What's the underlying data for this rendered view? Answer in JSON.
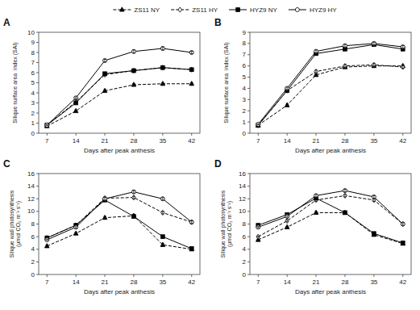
{
  "chart_data": [
    {
      "type": "line",
      "title": "A",
      "x_label": "Days after peak anthesis",
      "y_label": "Silique surface area  index (SAI)",
      "x": [
        7,
        14,
        21,
        28,
        35,
        42
      ],
      "xlim": [
        5,
        44
      ],
      "xticks": [
        7,
        14,
        21,
        28,
        35,
        42
      ],
      "ylim": [
        0,
        10
      ],
      "yticks": [
        0,
        1,
        2,
        3,
        4,
        5,
        6,
        7,
        8,
        9,
        10
      ],
      "grid": false,
      "legend": "top",
      "series": [
        {
          "name": "ZS11 NY",
          "color": "#000000",
          "line_style": "dashed",
          "marker": "triangle",
          "values": [
            0.7,
            2.2,
            4.2,
            4.8,
            4.9,
            4.9
          ],
          "errors": [
            0.05,
            0.1,
            0.12,
            0.12,
            0.1,
            0.1
          ]
        },
        {
          "name": "ZS11 HY",
          "color": "#000000",
          "line_style": "dashed",
          "marker": "diamond-open",
          "values": [
            0.8,
            3.1,
            5.8,
            6.2,
            6.5,
            6.3
          ],
          "errors": [
            0.05,
            0.1,
            0.12,
            0.12,
            0.12,
            0.12
          ]
        },
        {
          "name": "HYZ9 NY",
          "color": "#000000",
          "line_style": "solid",
          "marker": "square",
          "values": [
            0.8,
            3.0,
            5.9,
            6.2,
            6.5,
            6.3
          ],
          "errors": [
            0.05,
            0.1,
            0.12,
            0.12,
            0.12,
            0.12
          ]
        },
        {
          "name": "HYZ9 HY",
          "color": "#000000",
          "line_style": "solid",
          "marker": "circle-open",
          "values": [
            0.8,
            3.5,
            7.2,
            8.1,
            8.4,
            8.0
          ],
          "errors": [
            0.05,
            0.1,
            0.12,
            0.15,
            0.15,
            0.12
          ]
        }
      ]
    },
    {
      "type": "line",
      "title": "B",
      "x_label": "Days after peak anthesis",
      "y_label": "Silique surface area  index (SAI)",
      "x": [
        7,
        14,
        21,
        28,
        35,
        42
      ],
      "xlim": [
        5,
        44
      ],
      "xticks": [
        7,
        14,
        21,
        28,
        35,
        42
      ],
      "ylim": [
        0,
        9
      ],
      "yticks": [
        0,
        1,
        2,
        3,
        4,
        5,
        6,
        7,
        8,
        9
      ],
      "grid": false,
      "series": [
        {
          "color": "#000000",
          "line_style": "dashed",
          "marker": "triangle",
          "values": [
            0.7,
            2.5,
            5.2,
            5.9,
            6.0,
            6.0
          ],
          "errors": [
            0.05,
            0.1,
            0.12,
            0.12,
            0.12,
            0.12
          ]
        },
        {
          "color": "#000000",
          "line_style": "dashed",
          "marker": "diamond-open",
          "values": [
            0.7,
            3.8,
            5.5,
            6.0,
            6.1,
            5.9
          ],
          "errors": [
            0.05,
            0.1,
            0.12,
            0.12,
            0.12,
            0.12
          ]
        },
        {
          "color": "#000000",
          "line_style": "solid",
          "marker": "square",
          "values": [
            0.7,
            3.8,
            7.1,
            7.5,
            7.9,
            7.5
          ],
          "errors": [
            0.05,
            0.1,
            0.12,
            0.12,
            0.12,
            0.12
          ]
        },
        {
          "color": "#000000",
          "line_style": "solid",
          "marker": "circle-open",
          "values": [
            0.8,
            4.0,
            7.3,
            7.8,
            8.0,
            7.7
          ],
          "errors": [
            0.05,
            0.1,
            0.12,
            0.12,
            0.12,
            0.12
          ]
        }
      ]
    },
    {
      "type": "line",
      "title": "C",
      "x_label": "Days after peak anthesis",
      "y_label": "Silique wall photosynthesis\n(μmol CO₂ m⁻² s⁻¹)",
      "x": [
        7,
        14,
        21,
        28,
        35,
        42
      ],
      "xlim": [
        5,
        44
      ],
      "xticks": [
        7,
        14,
        21,
        28,
        35,
        42
      ],
      "ylim": [
        0,
        16
      ],
      "yticks": [
        0,
        2,
        4,
        6,
        8,
        10,
        12,
        14,
        16
      ],
      "grid": false,
      "series": [
        {
          "color": "#000000",
          "line_style": "dashed",
          "marker": "triangle",
          "values": [
            4.5,
            6.5,
            9.0,
            9.3,
            4.7,
            4.0
          ],
          "errors": [
            0.1,
            0.15,
            0.2,
            0.2,
            0.2,
            0.2
          ]
        },
        {
          "color": "#000000",
          "line_style": "dashed",
          "marker": "diamond-open",
          "values": [
            5.8,
            7.8,
            12.1,
            12.2,
            9.8,
            8.3
          ],
          "errors": [
            0.1,
            0.15,
            0.2,
            0.2,
            0.2,
            0.2
          ]
        },
        {
          "color": "#000000",
          "line_style": "solid",
          "marker": "square",
          "values": [
            5.8,
            7.8,
            11.8,
            9.2,
            6.0,
            4.1
          ],
          "errors": [
            0.1,
            0.15,
            0.2,
            0.2,
            0.2,
            0.2
          ]
        },
        {
          "color": "#000000",
          "line_style": "solid",
          "marker": "circle-open",
          "values": [
            5.5,
            7.5,
            12.0,
            13.1,
            12.0,
            8.3
          ],
          "errors": [
            0.1,
            0.15,
            0.2,
            0.2,
            0.2,
            0.2
          ]
        }
      ]
    },
    {
      "type": "line",
      "title": "D",
      "x_label": "Days after peak anthesis",
      "y_label": "Silique wall photosynthesis\n(μmol CO₂ m⁻² s⁻¹)",
      "x": [
        7,
        14,
        21,
        28,
        35,
        42
      ],
      "xlim": [
        5,
        44
      ],
      "xticks": [
        7,
        14,
        21,
        28,
        35,
        42
      ],
      "ylim": [
        0,
        16
      ],
      "yticks": [
        0,
        2,
        4,
        6,
        8,
        10,
        12,
        14,
        16
      ],
      "grid": false,
      "series": [
        {
          "color": "#000000",
          "line_style": "dashed",
          "marker": "triangle",
          "values": [
            5.5,
            7.5,
            9.8,
            9.8,
            6.3,
            4.9
          ],
          "errors": [
            0.1,
            0.15,
            0.2,
            0.2,
            0.2,
            0.2
          ]
        },
        {
          "color": "#000000",
          "line_style": "dashed",
          "marker": "diamond-open",
          "values": [
            6.0,
            8.5,
            11.8,
            12.5,
            11.8,
            8.0
          ],
          "errors": [
            0.1,
            0.15,
            0.2,
            0.2,
            0.2,
            0.2
          ]
        },
        {
          "color": "#000000",
          "line_style": "solid",
          "marker": "square",
          "values": [
            7.8,
            9.5,
            12.1,
            9.8,
            6.5,
            5.0
          ],
          "errors": [
            0.1,
            0.15,
            0.2,
            0.2,
            0.2,
            0.2
          ]
        },
        {
          "color": "#000000",
          "line_style": "solid",
          "marker": "circle-open",
          "values": [
            7.5,
            9.2,
            12.5,
            13.3,
            12.3,
            8.0
          ],
          "errors": [
            0.1,
            0.15,
            0.2,
            0.2,
            0.2,
            0.2
          ]
        }
      ]
    }
  ]
}
